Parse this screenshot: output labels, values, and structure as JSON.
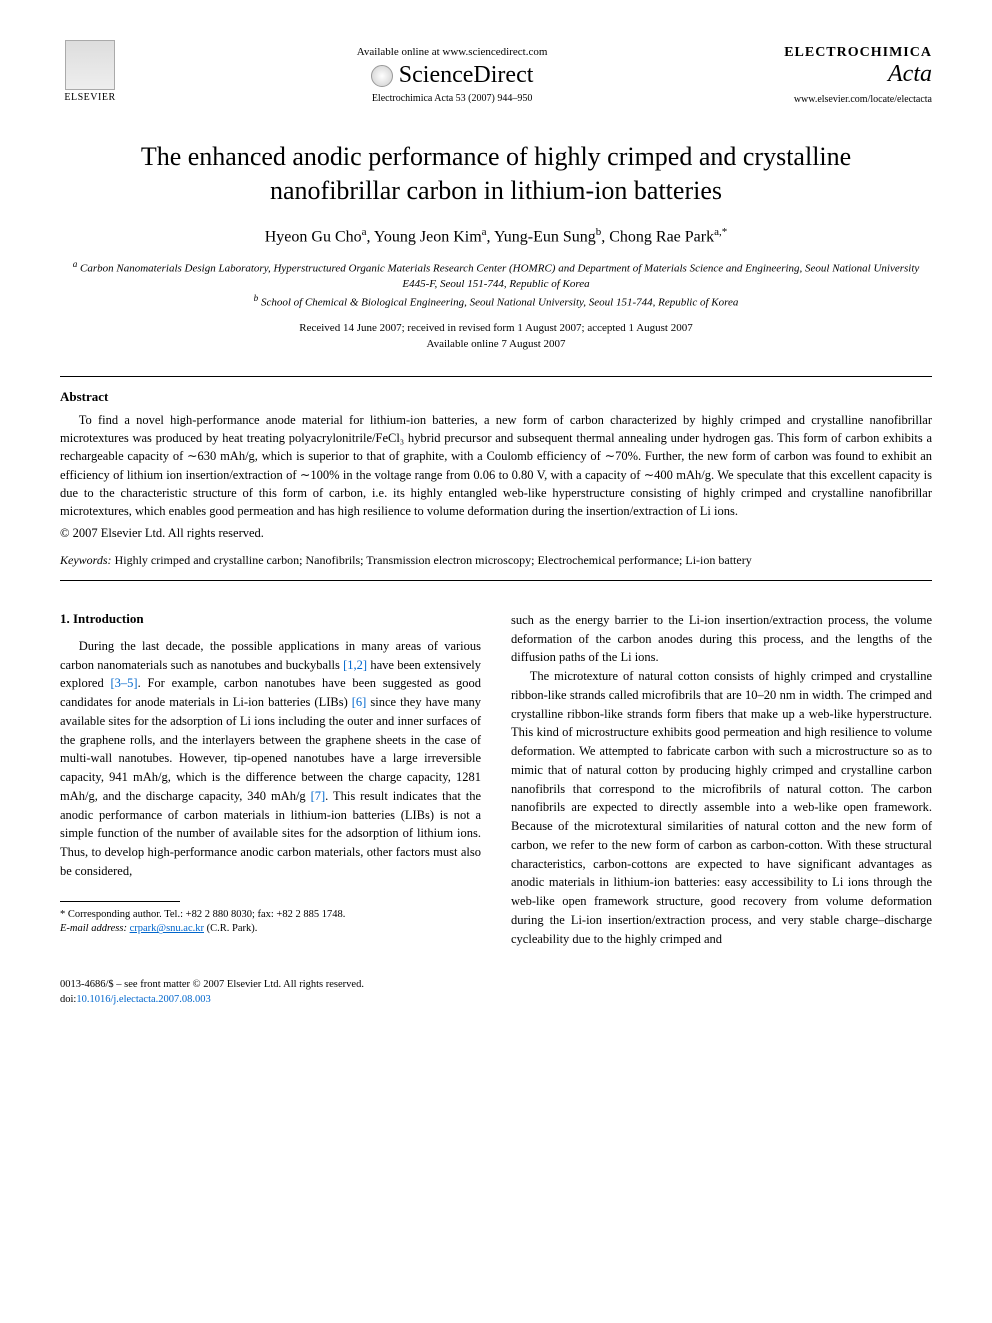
{
  "header": {
    "elsevier_label": "ELSEVIER",
    "available_online": "Available online at www.sciencedirect.com",
    "sciencedirect": "ScienceDirect",
    "journal_ref": "Electrochimica Acta 53 (2007) 944–950",
    "journal_name": "ELECTROCHIMICA",
    "journal_acta": "Acta",
    "journal_url": "www.elsevier.com/locate/electacta"
  },
  "title": "The enhanced anodic performance of highly crimped and crystalline nanofibrillar carbon in lithium-ion batteries",
  "authors": [
    {
      "name": "Hyeon Gu Cho",
      "sup": "a"
    },
    {
      "name": "Young Jeon Kim",
      "sup": "a"
    },
    {
      "name": "Yung-Eun Sung",
      "sup": "b"
    },
    {
      "name": "Chong Rae Park",
      "sup": "a,*"
    }
  ],
  "affiliations": {
    "a": "Carbon Nanomaterials Design Laboratory, Hyperstructured Organic Materials Research Center (HOMRC) and Department of Materials Science and Engineering, Seoul National University E445-F, Seoul 151-744, Republic of Korea",
    "b": "School of Chemical & Biological Engineering, Seoul National University, Seoul 151-744, Republic of Korea"
  },
  "dates": {
    "received": "Received 14 June 2007; received in revised form 1 August 2007; accepted 1 August 2007",
    "available": "Available online 7 August 2007"
  },
  "abstract": {
    "heading": "Abstract",
    "text": "To find a novel high-performance anode material for lithium-ion batteries, a new form of carbon characterized by highly crimped and crystalline nanofibrillar microtextures was produced by heat treating polyacrylonitrile/FeCl₃ hybrid precursor and subsequent thermal annealing under hydrogen gas. This form of carbon exhibits a rechargeable capacity of ∼630 mAh/g, which is superior to that of graphite, with a Coulomb efficiency of ∼70%. Further, the new form of carbon was found to exhibit an efficiency of lithium ion insertion/extraction of ∼100% in the voltage range from 0.06 to 0.80 V, with a capacity of ∼400 mAh/g. We speculate that this excellent capacity is due to the characteristic structure of this form of carbon, i.e. its highly entangled web-like hyperstructure consisting of highly crimped and crystalline nanofibrillar microtextures, which enables good permeation and has high resilience to volume deformation during the insertion/extraction of Li ions.",
    "copyright": "© 2007 Elsevier Ltd. All rights reserved."
  },
  "keywords": {
    "label": "Keywords:",
    "text": "Highly crimped and crystalline carbon; Nanofibrils; Transmission electron microscopy; Electrochemical performance; Li-ion battery"
  },
  "intro": {
    "heading": "1. Introduction",
    "para1_a": "During the last decade, the possible applications in many areas of various carbon nanomaterials such as nanotubes and buckyballs ",
    "ref1": "[1,2]",
    "para1_b": " have been extensively explored ",
    "ref2": "[3–5]",
    "para1_c": ". For example, carbon nanotubes have been suggested as good candidates for anode materials in Li-ion batteries (LIBs) ",
    "ref3": "[6]",
    "para1_d": " since they have many available sites for the adsorption of Li ions including the outer and inner surfaces of the graphene rolls, and the interlayers between the graphene sheets in the case of multi-wall nanotubes. However, tip-opened nanotubes have a large irreversible capacity, 941 mAh/g, which is the difference between the charge capacity, 1281 mAh/g, and the discharge capacity, 340 mAh/g ",
    "ref4": "[7]",
    "para1_e": ". This result indicates that the anodic performance of carbon materials in lithium-ion batteries (LIBs) is not a simple function of the number of available sites for the adsorption of lithium ions. Thus, to develop high-performance anodic carbon materials, other factors must also be considered,",
    "para2": "such as the energy barrier to the Li-ion insertion/extraction process, the volume deformation of the carbon anodes during this process, and the lengths of the diffusion paths of the Li ions.",
    "para3": "The microtexture of natural cotton consists of highly crimped and crystalline ribbon-like strands called microfibrils that are 10–20 nm in width. The crimped and crystalline ribbon-like strands form fibers that make up a web-like hyperstructure. This kind of microstructure exhibits good permeation and high resilience to volume deformation. We attempted to fabricate carbon with such a microstructure so as to mimic that of natural cotton by producing highly crimped and crystalline carbon nanofibrils that correspond to the microfibrils of natural cotton. The carbon nanofibrils are expected to directly assemble into a web-like open framework. Because of the microtextural similarities of natural cotton and the new form of carbon, we refer to the new form of carbon as carbon-cotton. With these structural characteristics, carbon-cottons are expected to have significant advantages as anodic materials in lithium-ion batteries: easy accessibility to Li ions through the web-like open framework structure, good recovery from volume deformation during the Li-ion insertion/extraction process, and very stable charge–discharge cycleability due to the highly crimped and"
  },
  "footnote": {
    "corresponding": "* Corresponding author. Tel.: +82 2 880 8030; fax: +82 2 885 1748.",
    "email_label": "E-mail address:",
    "email": "crpark@snu.ac.kr",
    "email_name": "(C.R. Park)."
  },
  "footer": {
    "issn": "0013-4686/$ – see front matter © 2007 Elsevier Ltd. All rights reserved.",
    "doi_label": "doi:",
    "doi": "10.1016/j.electacta.2007.08.003"
  }
}
